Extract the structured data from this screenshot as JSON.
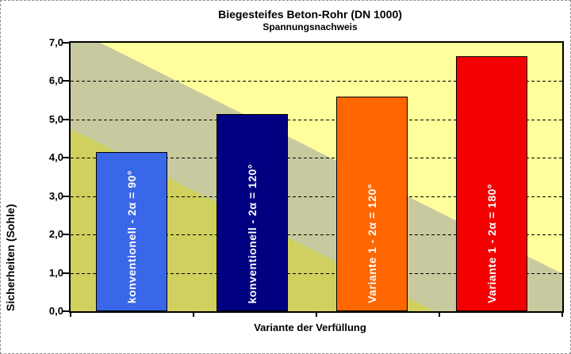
{
  "chart_data": {
    "type": "bar",
    "title": "Biegesteifes Beton-Rohr (DN 1000)",
    "subtitle": "Spannungsnachweis",
    "xlabel": "Variante der Verfüllung",
    "ylabel": "Sicherheiten (Sohle)",
    "ylim": [
      0,
      7
    ],
    "ytick_step": 1,
    "yticks_top_to_bottom": [
      "7,0",
      "6,0",
      "5,0",
      "4,0",
      "3,0",
      "2,0",
      "1,0",
      "0,0"
    ],
    "grid": "horizontal-dashed",
    "legend_position": "none",
    "categories": [
      "konventionell - 2α = 90°",
      "konventionell - 2α = 120°",
      "Variante 1 - 2α = 120°",
      "Variante 1 - 2α = 180°"
    ],
    "values": [
      4.15,
      5.15,
      5.6,
      6.65
    ],
    "bar_colors": [
      "#3a66e8",
      "#000080",
      "#ff6600",
      "#f40000"
    ],
    "bar_label_color": "#ffffff",
    "background_bands": {
      "comment_colors_bottomleft_to_topright": [
        "#d0d05f",
        "#c9c9a0",
        "#ffff9b"
      ],
      "band_stops_pct": [
        35.4,
        55.1
      ],
      "band_angle_deg": 26.6
    }
  }
}
